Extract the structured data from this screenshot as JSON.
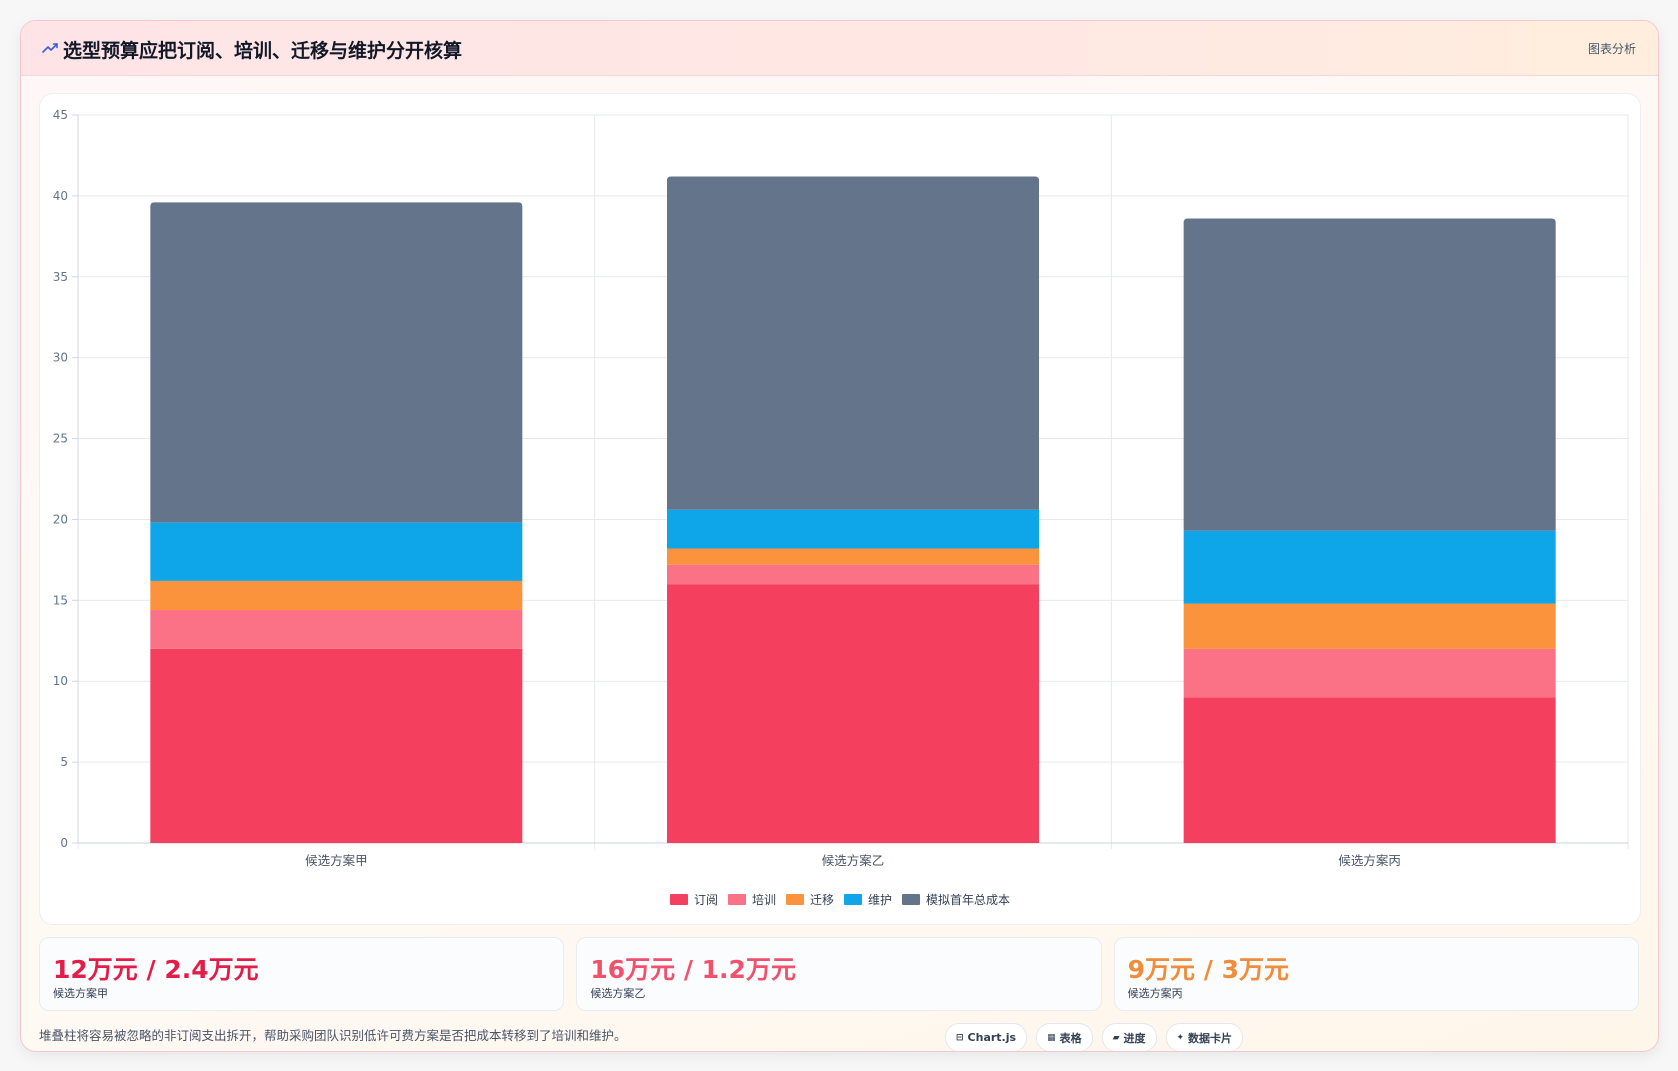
{
  "header": {
    "title": "选型预算应把订阅、培训、迁移与维护分开核算",
    "tag": "图表分析"
  },
  "chart_data": {
    "type": "bar",
    "stacked": true,
    "categories": [
      "候选方案甲",
      "候选方案乙",
      "候选方案丙"
    ],
    "series": [
      {
        "name": "订阅",
        "color": "#f43f5e",
        "values": [
          12,
          16,
          9
        ]
      },
      {
        "name": "培训",
        "color": "#fb7185",
        "values": [
          2.4,
          1.2,
          3
        ]
      },
      {
        "name": "迁移",
        "color": "#fb923c",
        "values": [
          1.8,
          1,
          2.8
        ]
      },
      {
        "name": "维护",
        "color": "#0ea5e9",
        "values": [
          3.6,
          2.4,
          4.5
        ]
      },
      {
        "name": "模拟首年总成本",
        "color": "#64748b",
        "values": [
          19.8,
          20.6,
          19.3
        ]
      }
    ],
    "ylim": [
      0,
      45
    ],
    "yticks": [
      0,
      5,
      10,
      15,
      20,
      25,
      30,
      35,
      40,
      45
    ],
    "grid": true,
    "legend": "bottom"
  },
  "stats": [
    {
      "value": "12万元 / 2.4万元",
      "label": "候选方案甲",
      "color": "#e11d48"
    },
    {
      "value": "16万元 / 1.2万元",
      "label": "候选方案乙",
      "color": "#f0526e"
    },
    {
      "value": "9万元 / 3万元",
      "label": "候选方案丙",
      "color": "#f08c3a"
    }
  ],
  "footnote": "堆叠柱将容易被忽略的非订阅支出拆开，帮助采购团队识别低许可费方案是否把成本转移到了培训和维护。",
  "badges": [
    {
      "icon": "⊟",
      "label": "Chart.js"
    },
    {
      "icon": "▦",
      "label": "表格"
    },
    {
      "icon": "▰",
      "label": "进度"
    },
    {
      "icon": "✦",
      "label": "数据卡片"
    }
  ]
}
